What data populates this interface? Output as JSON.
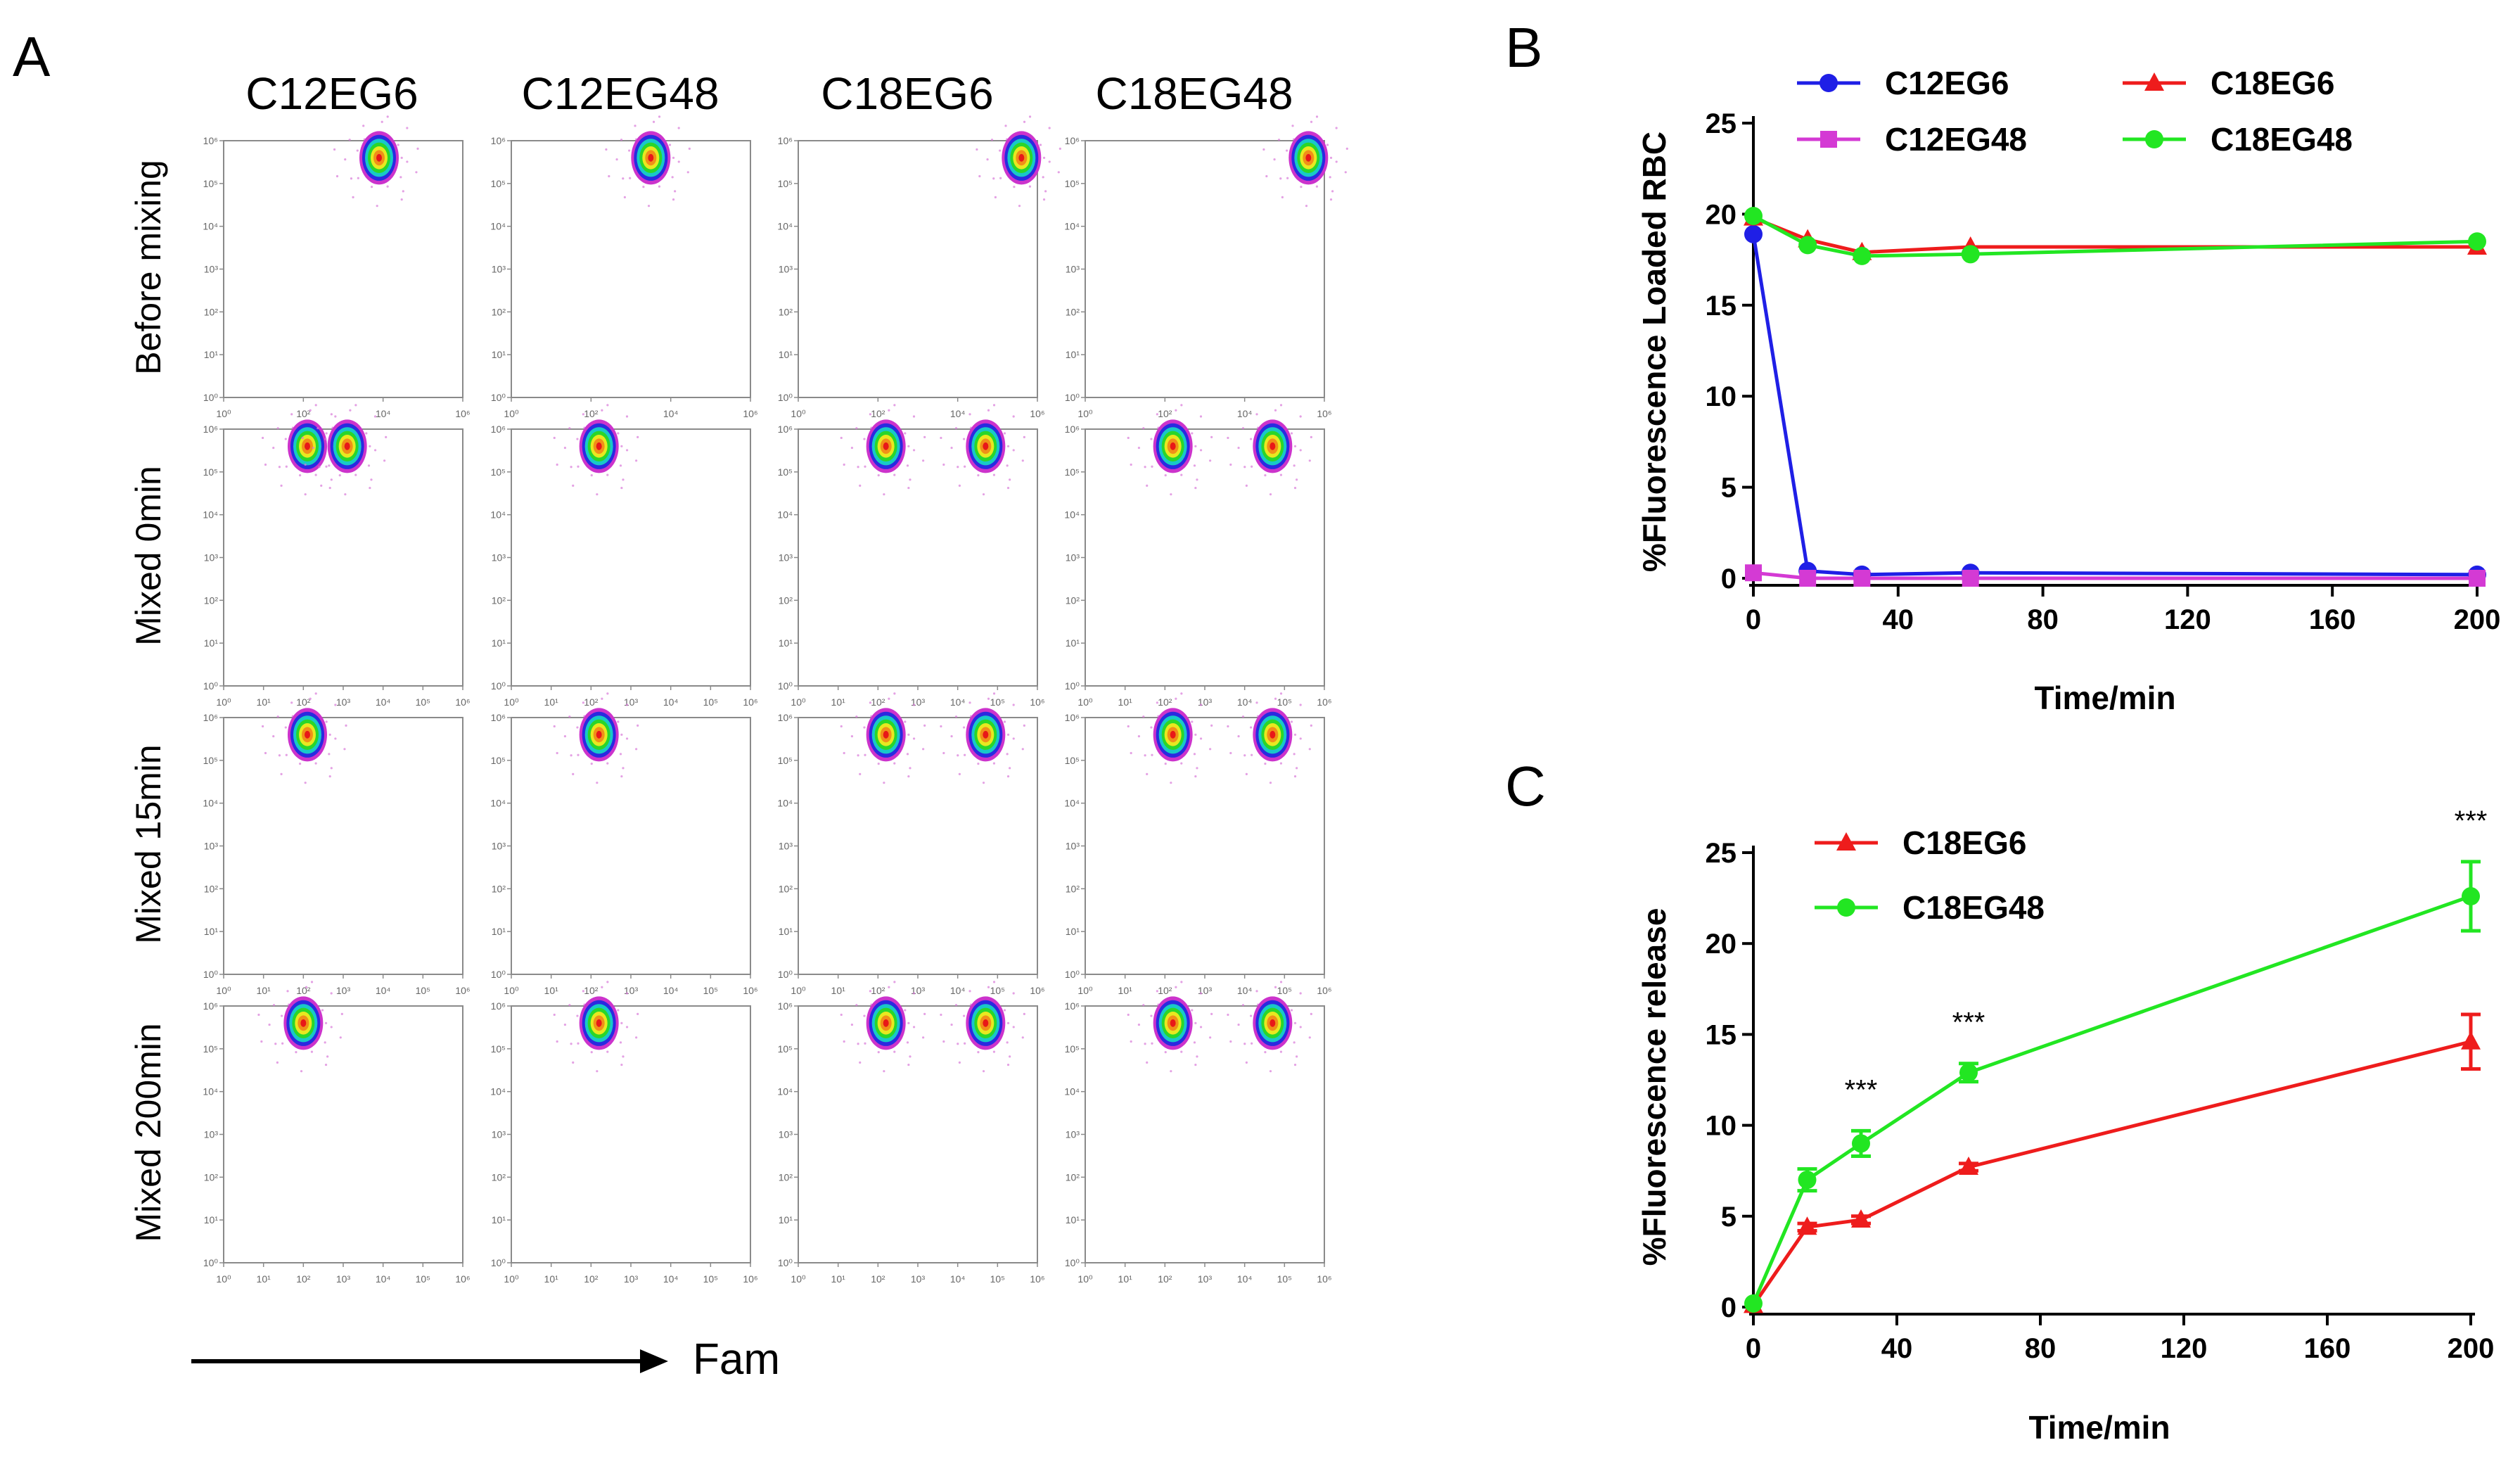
{
  "panel_letters": {
    "a": "A",
    "b": "B",
    "c": "C"
  },
  "colors": {
    "blue": "#1f1fe6",
    "magenta": "#d43ad4",
    "red": "#ee1c1c",
    "green": "#22e622",
    "black": "#000000",
    "frame": "#8a8a8a",
    "tick_text": "#666666"
  },
  "panel_a": {
    "columns": [
      "C12EG6",
      "C12EG48",
      "C18EG6",
      "C18EG48"
    ],
    "rows": [
      "Before mixing",
      "Mixed 0min",
      "Mixed 15min",
      "Mixed 200min"
    ],
    "y_ticks": [
      "10⁰",
      "10¹",
      "10²",
      "10³",
      "10⁴",
      "10⁵",
      "10⁶"
    ],
    "x_ticks_sparse": [
      "10⁰",
      "10²",
      "10⁴",
      "10⁶"
    ],
    "x_ticks_full": [
      "10⁰",
      "10¹",
      "10²",
      "10³",
      "10⁴",
      "10⁵",
      "10⁶"
    ],
    "arrow_label": "Fam",
    "populations": [
      [
        [
          [
            3.9,
            5.6
          ]
        ],
        [
          [
            3.5,
            5.6
          ]
        ],
        [
          [
            5.6,
            5.6
          ]
        ],
        [
          [
            5.6,
            5.6
          ]
        ]
      ],
      [
        [
          [
            2.1,
            5.6
          ],
          [
            3.1,
            5.6
          ]
        ],
        [
          [
            2.2,
            5.6
          ]
        ],
        [
          [
            2.2,
            5.6
          ],
          [
            4.7,
            5.6
          ]
        ],
        [
          [
            2.2,
            5.6
          ],
          [
            4.7,
            5.6
          ]
        ]
      ],
      [
        [
          [
            2.1,
            5.6
          ]
        ],
        [
          [
            2.2,
            5.6
          ]
        ],
        [
          [
            2.2,
            5.6
          ],
          [
            4.7,
            5.6
          ]
        ],
        [
          [
            2.2,
            5.6
          ],
          [
            4.7,
            5.6
          ]
        ]
      ],
      [
        [
          [
            2.0,
            5.6
          ]
        ],
        [
          [
            2.2,
            5.6
          ]
        ],
        [
          [
            2.2,
            5.6
          ],
          [
            4.7,
            5.6
          ]
        ],
        [
          [
            2.2,
            5.6
          ],
          [
            4.7,
            5.6
          ]
        ]
      ]
    ]
  },
  "chart_data": [
    {
      "type": "line",
      "panel": "B",
      "title": "",
      "xlabel": "Time/min",
      "ylabel": "%Fluorescence Loaded RBC",
      "xlim": [
        0,
        200
      ],
      "ylim": [
        0,
        25
      ],
      "xticks": [
        0,
        40,
        80,
        120,
        160,
        200
      ],
      "yticks": [
        0,
        5,
        10,
        15,
        20,
        25
      ],
      "x": [
        0,
        15,
        30,
        60,
        200
      ],
      "series": [
        {
          "name": "C12EG6",
          "marker": "circle",
          "color": "#1f1fe6",
          "values": [
            18.9,
            0.4,
            0.2,
            0.3,
            0.2
          ]
        },
        {
          "name": "C12EG48",
          "marker": "square",
          "color": "#d43ad4",
          "values": [
            0.3,
            0.0,
            0.0,
            0.0,
            0.0
          ]
        },
        {
          "name": "C18EG6",
          "marker": "triangle",
          "color": "#ee1c1c",
          "values": [
            19.8,
            18.6,
            17.9,
            18.2,
            18.2
          ]
        },
        {
          "name": "C18EG48",
          "marker": "circle",
          "color": "#22e622",
          "values": [
            19.9,
            18.3,
            17.7,
            17.8,
            18.5
          ]
        }
      ]
    },
    {
      "type": "line",
      "panel": "C",
      "title": "",
      "xlabel": "Time/min",
      "ylabel": "%Fluorescence release",
      "xlim": [
        0,
        200
      ],
      "ylim": [
        0,
        25
      ],
      "xticks": [
        0,
        40,
        80,
        120,
        160,
        200
      ],
      "yticks": [
        0,
        5,
        10,
        15,
        20,
        25
      ],
      "x": [
        0,
        15,
        30,
        60,
        200
      ],
      "series": [
        {
          "name": "C18EG6",
          "marker": "triangle",
          "color": "#ee1c1c",
          "values": [
            0.1,
            4.4,
            4.8,
            7.7,
            14.6
          ],
          "errors": [
            0,
            0.2,
            0.2,
            0.2,
            1.5
          ]
        },
        {
          "name": "C18EG48",
          "marker": "circle",
          "color": "#22e622",
          "values": [
            0.2,
            7.0,
            9.0,
            12.9,
            22.6
          ],
          "errors": [
            0,
            0.6,
            0.7,
            0.5,
            1.9
          ]
        }
      ],
      "annotations": [
        {
          "x": 30,
          "text": "***"
        },
        {
          "x": 60,
          "text": "***"
        },
        {
          "x": 200,
          "text": "***"
        }
      ]
    }
  ]
}
